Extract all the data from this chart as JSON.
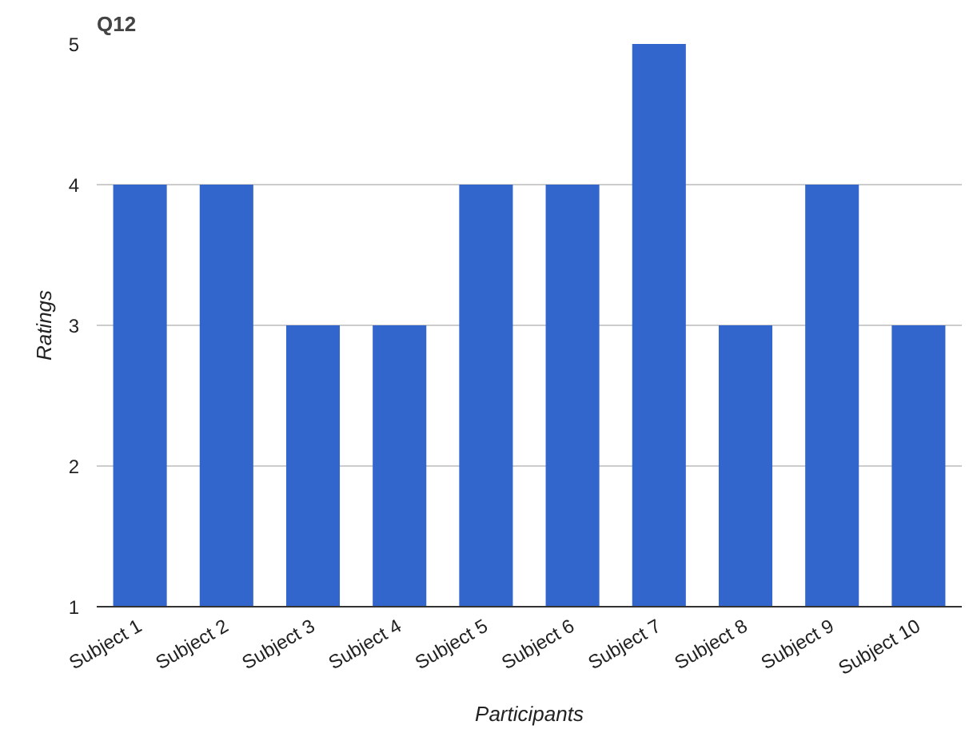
{
  "chart_data": {
    "type": "bar",
    "title": "Q12",
    "xlabel": "Participants",
    "ylabel": "Ratings",
    "categories": [
      "Subject 1",
      "Subject 2",
      "Subject 3",
      "Subject 4",
      "Subject 5",
      "Subject 6",
      "Subject 7",
      "Subject 8",
      "Subject 9",
      "Subject 10"
    ],
    "values": [
      4,
      4,
      3,
      3,
      4,
      4,
      5,
      3,
      4,
      3
    ],
    "color": "#3366cc",
    "ylim": [
      1,
      5
    ],
    "yticks": [
      1,
      2,
      3,
      4,
      5
    ],
    "grid": "y"
  }
}
